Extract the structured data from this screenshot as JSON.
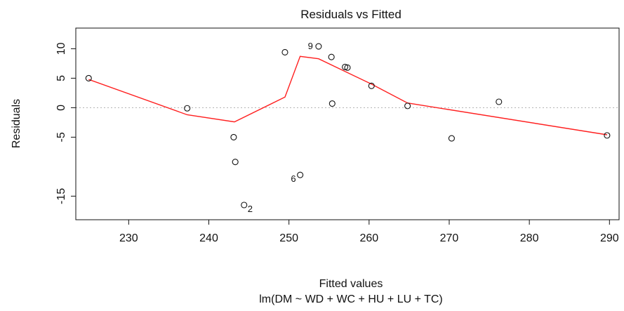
{
  "chart_data": {
    "type": "scatter",
    "title": "Residuals vs Fitted",
    "xlabel": "Fitted values",
    "xlabel_sub": "lm(DM ~ WD + WC + HU + LU + TC)",
    "ylabel": "Residuals",
    "xlim": [
      223.4,
      291.2
    ],
    "ylim": [
      -19.0,
      13.5
    ],
    "xticks": [
      230,
      240,
      250,
      260,
      270,
      280,
      290
    ],
    "yticks": [
      10,
      5,
      0,
      -5,
      -15
    ],
    "grid": false,
    "zero_line": true,
    "points": [
      {
        "x": 225.0,
        "y": 5.0
      },
      {
        "x": 237.3,
        "y": -0.1
      },
      {
        "x": 243.1,
        "y": -5.0
      },
      {
        "x": 243.3,
        "y": -9.2
      },
      {
        "x": 244.4,
        "y": -16.5,
        "label": "2"
      },
      {
        "x": 249.5,
        "y": 9.4
      },
      {
        "x": 251.4,
        "y": -11.4,
        "label": "6"
      },
      {
        "x": 253.7,
        "y": 10.4,
        "label": "9"
      },
      {
        "x": 255.3,
        "y": 8.6
      },
      {
        "x": 255.4,
        "y": 0.7
      },
      {
        "x": 257.0,
        "y": 6.9
      },
      {
        "x": 257.3,
        "y": 6.8
      },
      {
        "x": 260.3,
        "y": 3.7
      },
      {
        "x": 264.8,
        "y": 0.3
      },
      {
        "x": 270.3,
        "y": -5.2
      },
      {
        "x": 276.2,
        "y": 1.0
      },
      {
        "x": 289.7,
        "y": -4.7
      }
    ],
    "series": [
      {
        "type": "line",
        "color": "#ff2020",
        "x": [
          225.0,
          237.3,
          243.2,
          249.5,
          251.4,
          253.7,
          260.3,
          264.8,
          289.7
        ],
        "y": [
          4.8,
          -1.2,
          -2.4,
          1.8,
          8.7,
          8.3,
          4.0,
          0.8,
          -4.6
        ]
      }
    ],
    "colors": {
      "smooth_line": "#ff2020",
      "points": "#111111",
      "zero_line": "#b0b0b0"
    }
  }
}
